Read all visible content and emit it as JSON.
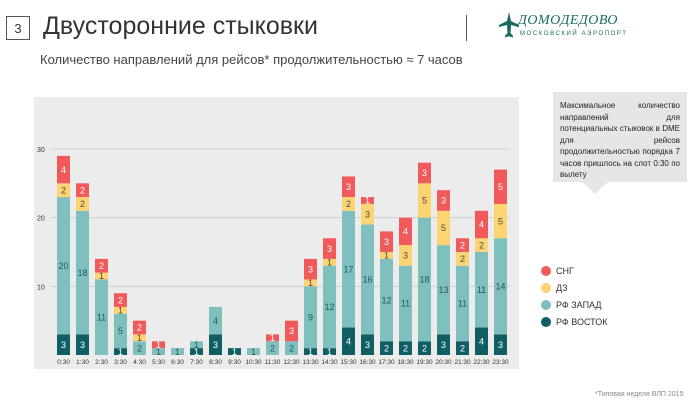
{
  "slide_number": "3",
  "title": "Двусторонние стыковки",
  "subtitle": "Количество направлений для рейсов* продолжительностью ≈ 7 часов",
  "logo": {
    "text": "ДОМОДЕДОВО",
    "subtext": "московский аэропорт"
  },
  "callout": "Максимальное количество направлений для потенциальных стыковок в DME для рейсов продолжительностью порядка 7 часов пришлось на слот 0:30 по вылету",
  "footnote": "*Типовая неделя ВЛП 2015",
  "colors": {
    "sng": "#f05a5a",
    "dz": "#fdd472",
    "west": "#7fbfbe",
    "east": "#0e5e63",
    "panel": "#ececec"
  },
  "legend": [
    {
      "label": "СНГ",
      "color": "#f05a5a"
    },
    {
      "label": "ДЗ",
      "color": "#fdd472"
    },
    {
      "label": "РФ ЗАПАД",
      "color": "#7fbfbe"
    },
    {
      "label": "РФ ВОСТОК",
      "color": "#0e5e63"
    }
  ],
  "chart_data": {
    "type": "bar",
    "stacked": true,
    "title": "",
    "ylim": [
      0,
      30
    ],
    "yticks": [
      10,
      20,
      30
    ],
    "grid": true,
    "categories": [
      "0:30",
      "1:30",
      "2:30",
      "3:30",
      "4:30",
      "5:30",
      "6:30",
      "7:30",
      "8:30",
      "9:30",
      "10:30",
      "11:30",
      "12:30",
      "13:30",
      "14:30",
      "15:30",
      "16:30",
      "17:30",
      "18:30",
      "19:30",
      "20:30",
      "21:30",
      "22:30",
      "23:30"
    ],
    "series": [
      {
        "name": "РФ ВОСТОК",
        "color": "#0e5e63",
        "label_color": "#ffffff",
        "values": [
          3,
          3,
          0,
          1,
          0,
          0,
          0,
          1,
          3,
          1,
          0,
          0,
          0,
          1,
          1,
          4,
          3,
          2,
          2,
          2,
          3,
          2,
          4,
          3
        ]
      },
      {
        "name": "РФ ЗАПАД",
        "color": "#7fbfbe",
        "label_color": "#1f5b5d",
        "values": [
          20,
          18,
          11,
          5,
          2,
          1,
          1,
          1,
          4,
          0,
          1,
          2,
          2,
          9,
          12,
          17,
          16,
          12,
          11,
          18,
          13,
          11,
          11,
          14
        ]
      },
      {
        "name": "ДЗ",
        "color": "#fdd472",
        "label_color": "#4a4a4a",
        "values": [
          2,
          2,
          1,
          1,
          1,
          0,
          0,
          0,
          0,
          0,
          0,
          0,
          0,
          1,
          1,
          2,
          3,
          1,
          3,
          5,
          5,
          2,
          2,
          5
        ]
      },
      {
        "name": "СНГ",
        "color": "#f05a5a",
        "label_color": "#ffffff",
        "values": [
          4,
          2,
          2,
          2,
          2,
          1,
          0,
          0,
          0,
          0,
          0,
          1,
          3,
          3,
          3,
          3,
          1,
          3,
          4,
          3,
          3,
          2,
          4,
          5
        ]
      }
    ]
  }
}
